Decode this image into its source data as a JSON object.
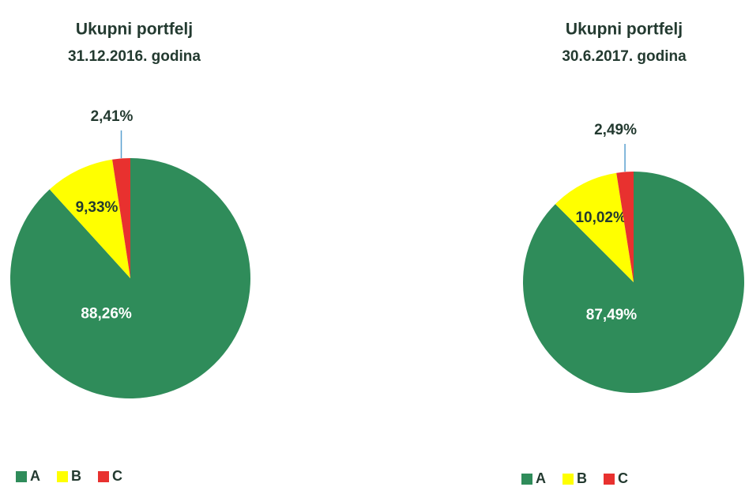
{
  "chart_data": [
    {
      "type": "pie",
      "title": "Ukupni portfelj",
      "subtitle": "31.12.2016. godina",
      "labels": [
        "A",
        "B",
        "C"
      ],
      "values": [
        88.26,
        9.33,
        2.41
      ],
      "value_labels": [
        "88,26%",
        "9,33%",
        "2,41%"
      ],
      "colors": [
        "#2f8c5a",
        "#ffff00",
        "#e8312f"
      ]
    },
    {
      "type": "pie",
      "title": "Ukupni portfelj",
      "subtitle": "30.6.2017. godina",
      "labels": [
        "A",
        "B",
        "C"
      ],
      "values": [
        87.49,
        10.02,
        2.49
      ],
      "value_labels": [
        "87,49%",
        "10,02%",
        "2,49%"
      ],
      "colors": [
        "#2f8c5a",
        "#ffff00",
        "#e8312f"
      ]
    }
  ]
}
